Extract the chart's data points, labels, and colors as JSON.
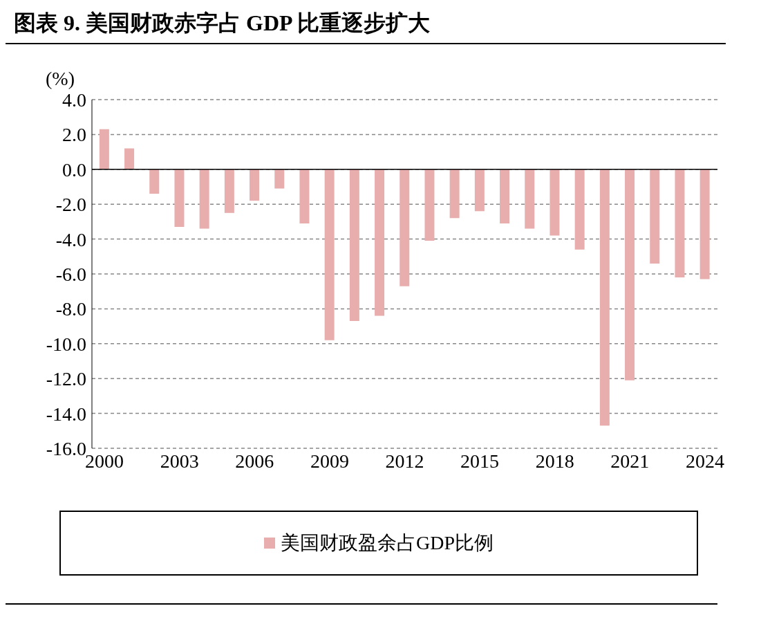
{
  "chart_data": {
    "type": "bar",
    "title": "图表 9. 美国财政赤字占 GDP 比重逐步扩大",
    "ylabel": "(%)",
    "categories": [
      "2000",
      null,
      null,
      "2003",
      null,
      null,
      "2006",
      null,
      null,
      "2009",
      null,
      null,
      "2012",
      null,
      null,
      "2015",
      null,
      null,
      "2018",
      null,
      null,
      "2021",
      null,
      null,
      "2024"
    ],
    "series": [
      {
        "name": "美国财政盈余占GDP比例",
        "color": "#e8adad",
        "values": [
          2.3,
          1.2,
          -1.4,
          -3.3,
          -3.4,
          -2.5,
          -1.8,
          -1.1,
          -3.1,
          -9.8,
          -8.7,
          -8.4,
          -6.7,
          -4.1,
          -2.8,
          -2.4,
          -3.1,
          -3.4,
          -3.8,
          -4.6,
          -14.7,
          -12.1,
          -5.4,
          -6.2,
          -6.3
        ]
      }
    ],
    "ylim": [
      -16,
      4
    ],
    "yticks": [
      {
        "value": 4,
        "label": "4.0"
      },
      {
        "value": 2,
        "label": "2.0"
      },
      {
        "value": 0,
        "label": "0.0"
      },
      {
        "value": -2,
        "label": "-2.0"
      },
      {
        "value": -4,
        "label": "-4.0"
      },
      {
        "value": -6,
        "label": "-6.0"
      },
      {
        "value": -8,
        "label": "-8.0"
      },
      {
        "value": -10,
        "label": "-10.0"
      },
      {
        "value": -12,
        "label": "-12.0"
      },
      {
        "value": -14,
        "label": "-14.0"
      },
      {
        "value": -16,
        "label": "-16.0"
      }
    ],
    "grid": "y",
    "legend": "bottom"
  }
}
